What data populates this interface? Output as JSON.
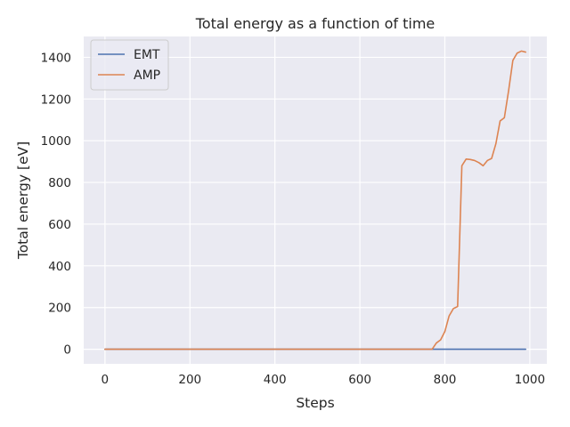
{
  "chart_data": {
    "type": "line",
    "title": "Total energy as a function of time",
    "xlabel": "Steps",
    "ylabel": "Total energy [eV]",
    "xlim": [
      -50,
      1040
    ],
    "ylim": [
      -70,
      1500
    ],
    "x_ticks": [
      0,
      200,
      400,
      600,
      800,
      1000
    ],
    "y_ticks": [
      0,
      200,
      400,
      600,
      800,
      1000,
      1200,
      1400
    ],
    "grid": true,
    "legend_position": "upper-left",
    "background_color": "#eaeaf2",
    "grid_color": "#ffffff",
    "series": [
      {
        "name": "EMT",
        "color": "#4c72b0",
        "x": [
          0,
          990
        ],
        "values": [
          0,
          0
        ]
      },
      {
        "name": "AMP",
        "color": "#dd8452",
        "x": [
          0,
          770,
          780,
          790,
          800,
          810,
          820,
          830,
          840,
          850,
          860,
          870,
          880,
          890,
          900,
          910,
          920,
          930,
          940,
          950,
          960,
          970,
          980,
          990
        ],
        "values": [
          0,
          0,
          30,
          45,
          85,
          160,
          195,
          205,
          880,
          912,
          910,
          905,
          895,
          880,
          905,
          915,
          985,
          1095,
          1110,
          1240,
          1385,
          1420,
          1430,
          1425
        ]
      }
    ]
  }
}
